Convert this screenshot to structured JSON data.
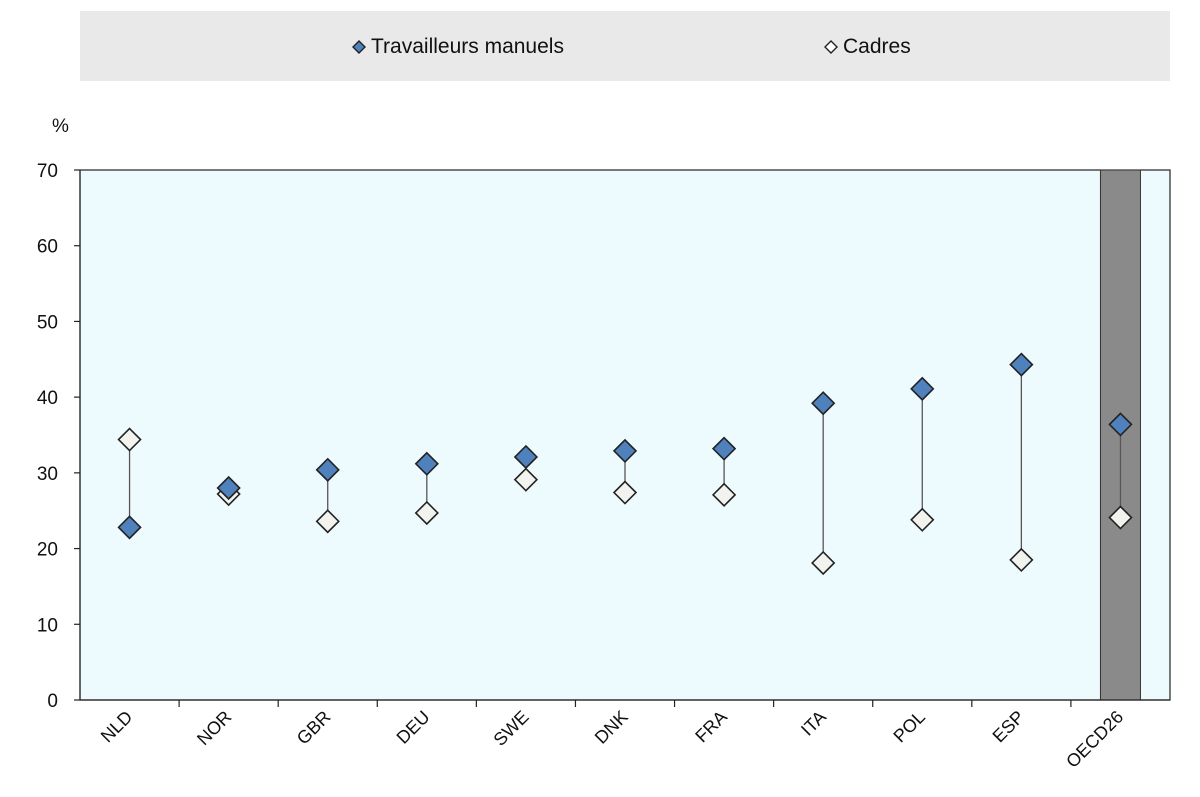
{
  "legend": {
    "items": [
      {
        "label": "Travailleurs manuels",
        "icon": "filled-blue-diamond-icon"
      },
      {
        "label": "Cadres",
        "icon": "hollow-white-diamond-icon"
      }
    ]
  },
  "colors": {
    "manuels_fill": "#4f81bd",
    "cadres_fill": "#f2f2ee",
    "marker_stroke": "#222222",
    "plot_background": "#eefbfe",
    "highlight_band": "#8a8a8a",
    "legend_background": "#e9e9e9",
    "connector_line": "#555555"
  },
  "chart_data": {
    "type": "scatter",
    "title": "",
    "ylabel": "%",
    "xlabel": "",
    "ylim": [
      0,
      70
    ],
    "yticks": [
      0,
      10,
      20,
      30,
      40,
      50,
      60,
      70
    ],
    "grid": false,
    "legend_position": "top",
    "highlighted_category": "OECD26",
    "categories": [
      "NLD",
      "NOR",
      "GBR",
      "DEU",
      "SWE",
      "DNK",
      "FRA",
      "ITA",
      "POL",
      "ESP",
      "OECD26"
    ],
    "series": [
      {
        "name": "Travailleurs manuels",
        "values": [
          22.8,
          28.0,
          30.4,
          31.2,
          32.1,
          32.9,
          33.2,
          39.2,
          41.1,
          44.3,
          36.4
        ]
      },
      {
        "name": "Cadres",
        "values": [
          34.4,
          27.2,
          23.6,
          24.7,
          29.1,
          27.4,
          27.1,
          18.1,
          23.8,
          18.5,
          24.1
        ]
      }
    ]
  }
}
